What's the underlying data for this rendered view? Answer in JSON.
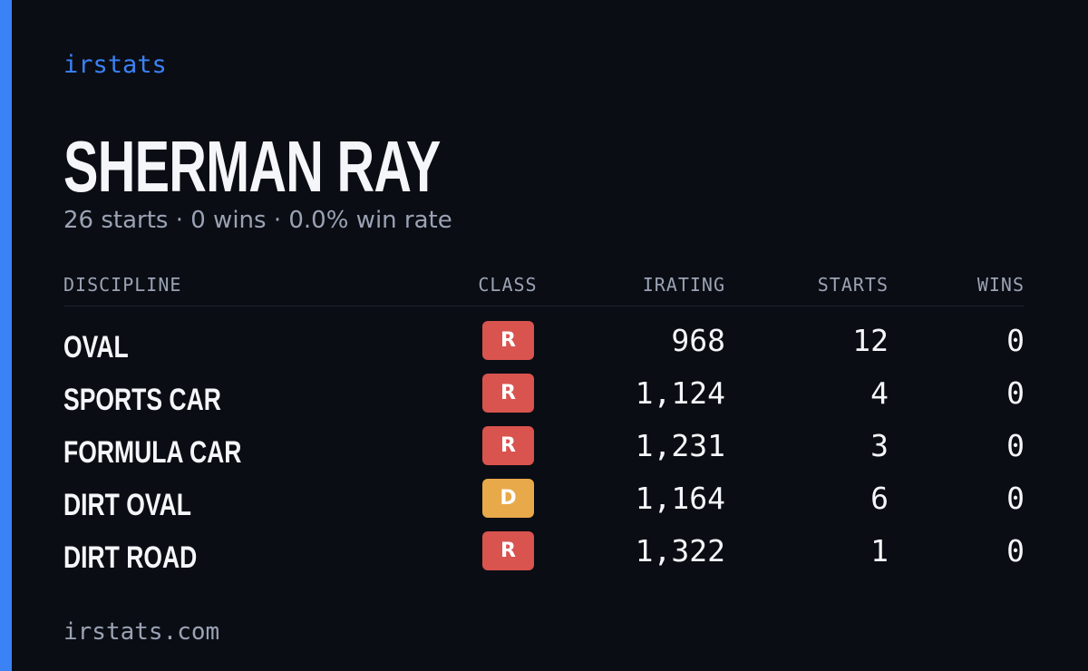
{
  "brand": "irstats",
  "driver": {
    "name": "SHERMAN RAY",
    "summary": "26 starts · 0 wins · 0.0% win rate"
  },
  "table": {
    "headers": [
      "DISCIPLINE",
      "CLASS",
      "IRATING",
      "STARTS",
      "WINS"
    ],
    "rows": [
      [
        "OVAL",
        "R",
        "968",
        "12",
        "0"
      ],
      [
        "SPORTS CAR",
        "R",
        "1,124",
        "4",
        "0"
      ],
      [
        "FORMULA CAR",
        "R",
        "1,231",
        "3",
        "0"
      ],
      [
        "DIRT OVAL",
        "D",
        "1,164",
        "6",
        "0"
      ],
      [
        "DIRT ROAD",
        "R",
        "1,322",
        "1",
        "0"
      ]
    ]
  },
  "footer": "irstats.com"
}
